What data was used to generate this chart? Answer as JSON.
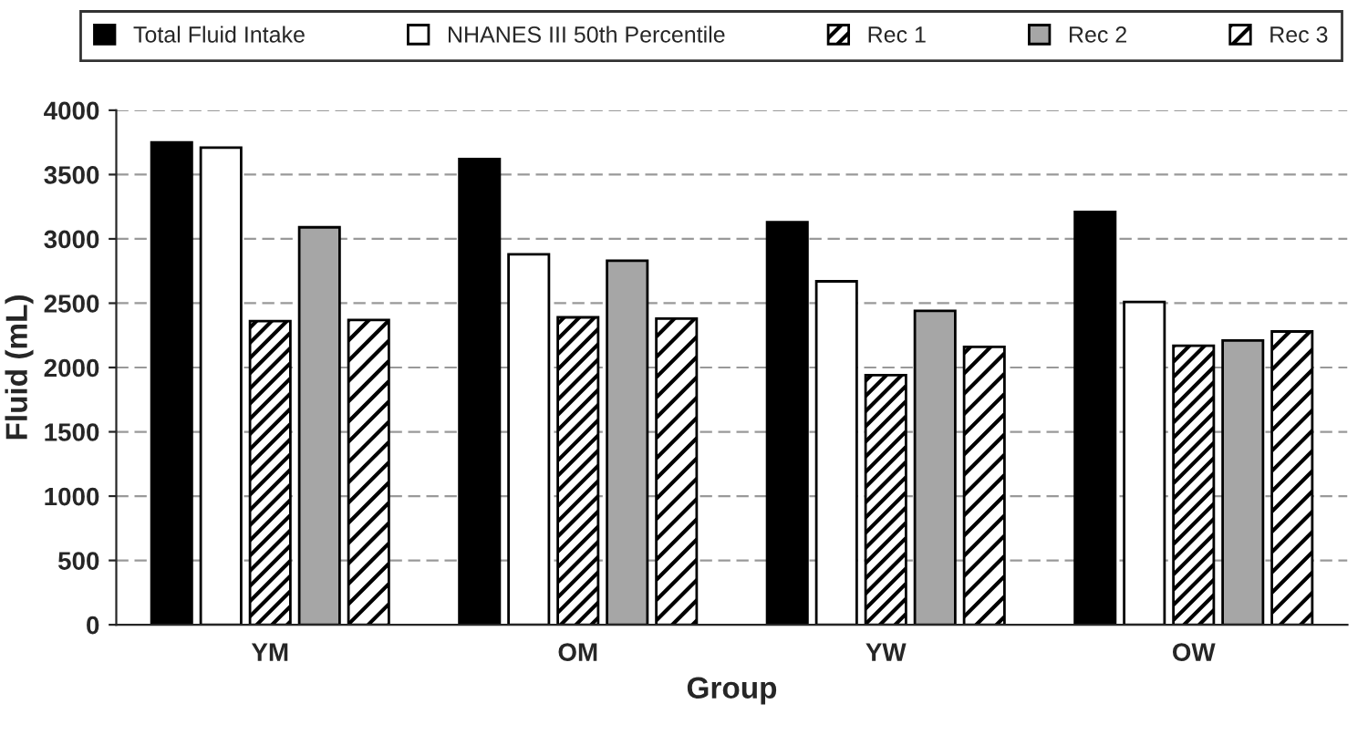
{
  "chart_data": {
    "type": "bar",
    "xlabel": "Group",
    "ylabel": "Fluid (mL)",
    "categories": [
      "YM",
      "OM",
      "YW",
      "OW"
    ],
    "series": [
      {
        "name": "Total Fluid Intake",
        "color": "#000000",
        "values": [
          3750,
          3620,
          3130,
          3210
        ]
      },
      {
        "name": "NHANES III 50th Percentile",
        "color": "#ffffff",
        "values": [
          3710,
          2880,
          2670,
          2510
        ]
      },
      {
        "name": "Rec 1",
        "color": "#000000",
        "values": [
          2360,
          2390,
          1940,
          2170
        ]
      },
      {
        "name": "Rec 2",
        "color": "#a6a6a6",
        "values": [
          3090,
          2830,
          2440,
          2210
        ]
      },
      {
        "name": "Rec 3",
        "color": "#000000",
        "values": [
          2370,
          2380,
          2160,
          2280
        ]
      }
    ],
    "ylim": [
      0,
      4000
    ],
    "yticks": [
      0,
      500,
      1000,
      1500,
      2000,
      2500,
      3000,
      3500,
      4000
    ],
    "grid": "y",
    "legend": "top"
  }
}
